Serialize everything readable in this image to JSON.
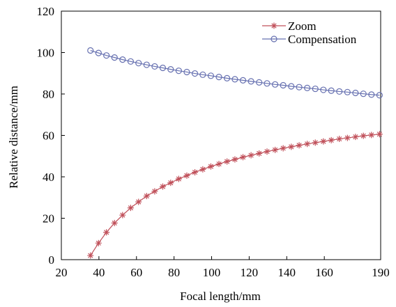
{
  "chart_data": {
    "type": "line",
    "title": "",
    "xlabel": "Focal length/mm",
    "ylabel": "Relative distance/mm",
    "xlim": [
      20,
      190
    ],
    "ylim": [
      0,
      120
    ],
    "xticks": [
      20,
      40,
      60,
      80,
      100,
      120,
      140,
      160,
      190
    ],
    "yticks": [
      0,
      20,
      40,
      60,
      80,
      100,
      120
    ],
    "grid": false,
    "legend_position": "top-right",
    "series": [
      {
        "name": "Zoom",
        "color": "#c0505a",
        "marker": "asterisk",
        "x": [
          35.5,
          39.8,
          44.0,
          48.3,
          52.6,
          56.9,
          61.1,
          65.4,
          69.7,
          74.0,
          78.2,
          82.5,
          86.8,
          91.1,
          95.3,
          99.6,
          103.9,
          108.2,
          112.4,
          116.7,
          121.0,
          125.3,
          129.5,
          133.8,
          138.1,
          142.4,
          146.6,
          150.9,
          155.2,
          159.5,
          163.7,
          168.0,
          172.3,
          176.6,
          180.8,
          185.1,
          189.4
        ],
        "y": [
          2.0,
          8.0,
          13.2,
          17.7,
          21.5,
          25.0,
          27.9,
          30.7,
          33.0,
          35.3,
          37.1,
          39.0,
          40.6,
          42.2,
          43.6,
          45.0,
          46.2,
          47.4,
          48.4,
          49.5,
          50.4,
          51.3,
          52.2,
          53.0,
          53.8,
          54.5,
          55.2,
          55.9,
          56.5,
          57.1,
          57.7,
          58.3,
          58.8,
          59.3,
          59.8,
          60.2,
          60.6
        ]
      },
      {
        "name": "Compensation",
        "color": "#6670b0",
        "marker": "circle",
        "x": [
          35.5,
          39.8,
          44.0,
          48.3,
          52.6,
          56.9,
          61.1,
          65.4,
          69.7,
          74.0,
          78.2,
          82.5,
          86.8,
          91.1,
          95.3,
          99.6,
          103.9,
          108.2,
          112.4,
          116.7,
          121.0,
          125.3,
          129.5,
          133.8,
          138.1,
          142.4,
          146.6,
          150.9,
          155.2,
          159.5,
          163.7,
          168.0,
          172.3,
          176.6,
          180.8,
          185.1,
          189.4
        ],
        "y": [
          101.0,
          99.8,
          98.6,
          97.6,
          96.6,
          95.7,
          94.9,
          94.1,
          93.3,
          92.6,
          91.9,
          91.2,
          90.6,
          89.9,
          89.3,
          88.8,
          88.2,
          87.6,
          87.1,
          86.6,
          86.1,
          85.6,
          85.1,
          84.6,
          84.2,
          83.7,
          83.3,
          82.9,
          82.5,
          82.0,
          81.6,
          81.2,
          80.9,
          80.5,
          80.1,
          79.7,
          79.4
        ]
      }
    ]
  }
}
